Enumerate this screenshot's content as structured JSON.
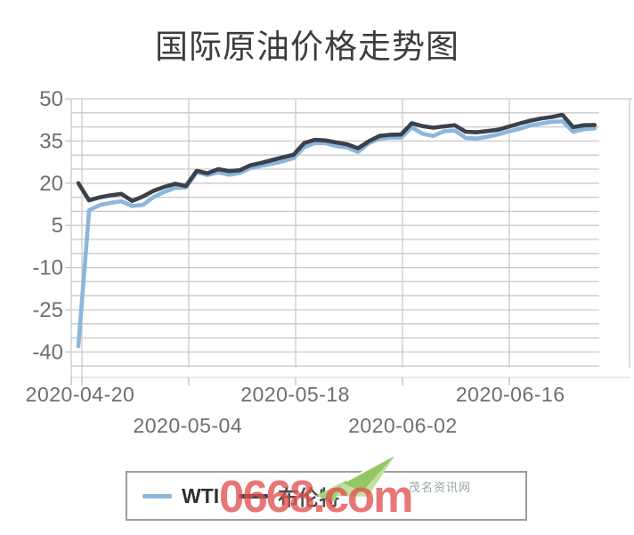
{
  "title": "国际原油价格走势图",
  "colors": {
    "wti_line": "#8cb6dc",
    "brent_line": "#3a414b",
    "grid_line": "#c9c9c9",
    "grid_bottom_line": "#c2cdd6",
    "axis_text": "#6e6e6e",
    "title_text": "#3d3d3d",
    "legend_border": "#9e9e9e",
    "watermark_red": "rgba(224,80,78,0.78)"
  },
  "chart_data": {
    "type": "line",
    "title": "国际原油价格走势图",
    "xlabel": "",
    "ylabel": "",
    "ylim": [
      -45,
      50
    ],
    "y_ticks": [
      50,
      35,
      20,
      5,
      -10,
      -25,
      -40
    ],
    "grid": true,
    "legend_position": "bottom",
    "x_tick_indices": [
      0,
      10,
      20,
      30,
      40
    ],
    "x_tick_labels": [
      "2020-04-20",
      "2020-05-04",
      "2020-05-18",
      "2020-06-02",
      "2020-06-16"
    ],
    "categories": [
      "2020-04-20",
      "2020-04-21",
      "2020-04-22",
      "2020-04-23",
      "2020-04-24",
      "2020-04-27",
      "2020-04-28",
      "2020-04-29",
      "2020-04-30",
      "2020-05-01",
      "2020-05-04",
      "2020-05-05",
      "2020-05-06",
      "2020-05-07",
      "2020-05-08",
      "2020-05-11",
      "2020-05-12",
      "2020-05-13",
      "2020-05-14",
      "2020-05-15",
      "2020-05-18",
      "2020-05-19",
      "2020-05-20",
      "2020-05-21",
      "2020-05-22",
      "2020-05-26",
      "2020-05-27",
      "2020-05-28",
      "2020-05-29",
      "2020-06-01",
      "2020-06-02",
      "2020-06-03",
      "2020-06-04",
      "2020-06-05",
      "2020-06-08",
      "2020-06-09",
      "2020-06-10",
      "2020-06-11",
      "2020-06-12",
      "2020-06-15",
      "2020-06-16",
      "2020-06-17",
      "2020-06-18",
      "2020-06-19",
      "2020-06-22",
      "2020-06-23",
      "2020-06-24",
      "2020-06-25",
      "2020-06-26"
    ],
    "series": [
      {
        "name": "WTI",
        "color": "#8cb6dc",
        "values": [
          -38.0,
          10.4,
          12.2,
          13.0,
          13.6,
          11.9,
          12.3,
          15.1,
          16.9,
          18.4,
          18.5,
          23.9,
          22.9,
          23.9,
          23.0,
          23.6,
          25.4,
          26.2,
          26.9,
          27.8,
          28.9,
          32.8,
          34.3,
          34.2,
          33.2,
          32.7,
          31.1,
          34.2,
          35.9,
          36.2,
          36.2,
          39.8,
          37.6,
          36.8,
          38.5,
          38.7,
          36.1,
          35.9,
          36.5,
          37.3,
          38.4,
          39.3,
          40.5,
          41.2,
          41.8,
          42.0,
          38.3,
          39.2,
          39.5
        ]
      },
      {
        "name": "布伦特",
        "color": "#3a414b",
        "values": [
          20.0,
          13.9,
          15.0,
          15.7,
          16.2,
          13.7,
          15.3,
          17.3,
          18.7,
          19.8,
          19.0,
          24.4,
          23.5,
          25.0,
          24.3,
          24.6,
          26.4,
          27.2,
          28.2,
          29.2,
          30.1,
          34.3,
          35.4,
          35.2,
          34.5,
          33.8,
          32.4,
          34.9,
          36.8,
          37.2,
          37.3,
          41.3,
          40.3,
          39.7,
          40.2,
          40.6,
          38.3,
          38.1,
          38.5,
          39.0,
          40.1,
          41.2,
          42.2,
          43.0,
          43.5,
          44.3,
          39.9,
          40.6,
          40.7
        ]
      }
    ]
  },
  "legend": {
    "items": [
      {
        "label": "WTI",
        "color": "#8cb6dc"
      },
      {
        "label": "布伦特",
        "color": "#3a414b"
      }
    ]
  },
  "watermark": {
    "text": "0668.com",
    "site_name": "茂名资讯网",
    "logo": "paper-airplane-icon"
  }
}
